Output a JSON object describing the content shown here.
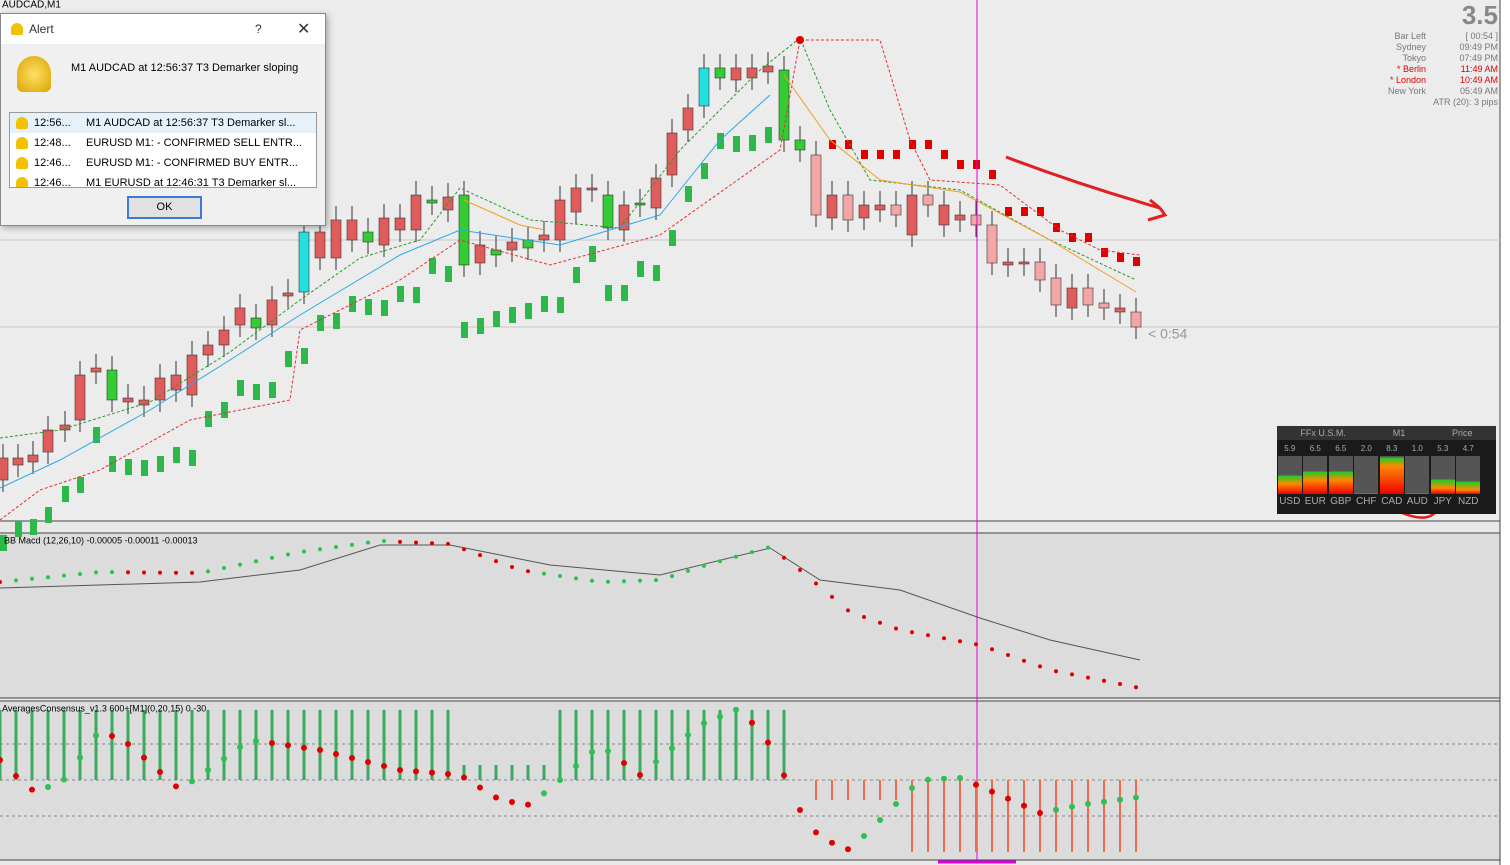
{
  "window_title": "AUDCAD,M1",
  "alert": {
    "title": "Alert",
    "help": "?",
    "message": "M1 AUDCAD at 12:56:37 T3 Demarker  sloping",
    "rows": [
      {
        "time": "12:56...",
        "text": "M1 AUDCAD at 12:56:37 T3 Demarker  sl..."
      },
      {
        "time": "12:48...",
        "text": "EURUSD M1:  -  CONFIRMED SELL ENTR..."
      },
      {
        "time": "12:46...",
        "text": "EURUSD M1:  -  CONFIRMED BUY ENTR..."
      },
      {
        "time": "12:46...",
        "text": "M1 EURUSD at 12:46:31 T3 Demarker  sl..."
      }
    ],
    "ok": "OK"
  },
  "info": {
    "big": "3.5",
    "rows": [
      {
        "label": "Bar Left",
        "value": "[ 00:54 ]"
      },
      {
        "label": "Sydney",
        "value": "09:49 PM"
      },
      {
        "label": "Tokyo",
        "value": "07:49 PM"
      },
      {
        "label": "* Berlin",
        "value": "11:49 AM"
      },
      {
        "label": "* London",
        "value": "10:49 AM"
      },
      {
        "label": "New York",
        "value": "05:49 AM"
      }
    ],
    "atr": "ATR (20): 3 pips"
  },
  "countdown": "< 0:54",
  "meter": {
    "header": [
      "FFx U.S.M.",
      "M1",
      "Price"
    ],
    "values": [
      "5.9",
      "6.5",
      "6.5",
      "2.0",
      "8.3",
      "1.0",
      "5.3",
      "4.7"
    ],
    "currencies": [
      "USD",
      "EUR",
      "GBP",
      "CHF",
      "CAD",
      "AUD",
      "JPY",
      "NZD"
    ]
  },
  "indicators": [
    "BB Macd (12,26,10) -0.00005 -0.00011 -0.00013",
    "AveragesConsensus_v1.3 600+[M1](0,20,15) 0 -30"
  ]
}
